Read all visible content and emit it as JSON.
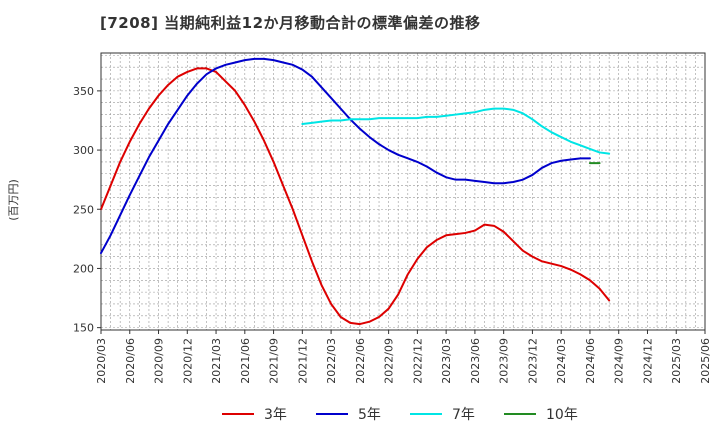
{
  "title": "[7208]  当期純利益12か月移動合計の標準偏差の推移",
  "chart_data": {
    "type": "line",
    "ylabel": "(百万円)",
    "ylim": [
      148,
      382
    ],
    "yticks": [
      150,
      200,
      250,
      300,
      350
    ],
    "xticks": [
      "2020/03",
      "2020/06",
      "2020/09",
      "2020/12",
      "2021/03",
      "2021/06",
      "2021/09",
      "2021/12",
      "2022/03",
      "2022/06",
      "2022/09",
      "2022/12",
      "2023/03",
      "2023/06",
      "2023/09",
      "2023/12",
      "2024/03",
      "2024/06",
      "2024/09",
      "2024/12",
      "2025/03",
      "2025/06"
    ],
    "grid": true,
    "legend_position": "bottom",
    "series": [
      {
        "name": "3年",
        "color": "#dd0000",
        "start_index": 0,
        "values": [
          250,
          270,
          290,
          307,
          322,
          335,
          346,
          355,
          362,
          366,
          369,
          369,
          366,
          358,
          350,
          338,
          324,
          308,
          290,
          270,
          250,
          228,
          206,
          186,
          170,
          159,
          154,
          153,
          155,
          159,
          166,
          178,
          195,
          208,
          218,
          224,
          228,
          229,
          230,
          232,
          237,
          236,
          231,
          223,
          215,
          210,
          206,
          204,
          202,
          199,
          195,
          190,
          183,
          173
        ]
      },
      {
        "name": "5年",
        "color": "#0000cc",
        "start_index": 0,
        "values": [
          213,
          228,
          245,
          262,
          278,
          294,
          308,
          322,
          334,
          346,
          356,
          364,
          369,
          372,
          374,
          376,
          377,
          377,
          376,
          374,
          372,
          368,
          362,
          353,
          344,
          335,
          326,
          318,
          311,
          305,
          300,
          296,
          293,
          290,
          286,
          281,
          277,
          275,
          275,
          274,
          273,
          272,
          272,
          273,
          275,
          279,
          285,
          289,
          291,
          292,
          293,
          293
        ]
      },
      {
        "name": "7年",
        "color": "#00e5e5",
        "start_index": 21,
        "values": [
          322,
          323,
          324,
          325,
          325,
          326,
          326,
          326,
          327,
          327,
          327,
          327,
          327,
          328,
          328,
          329,
          330,
          331,
          332,
          334,
          335,
          335,
          334,
          331,
          326,
          320,
          315,
          311,
          307,
          304,
          301,
          298,
          297
        ]
      },
      {
        "name": "10年",
        "color": "#228b22",
        "start_index": 51,
        "values": [
          289,
          289
        ]
      }
    ]
  }
}
